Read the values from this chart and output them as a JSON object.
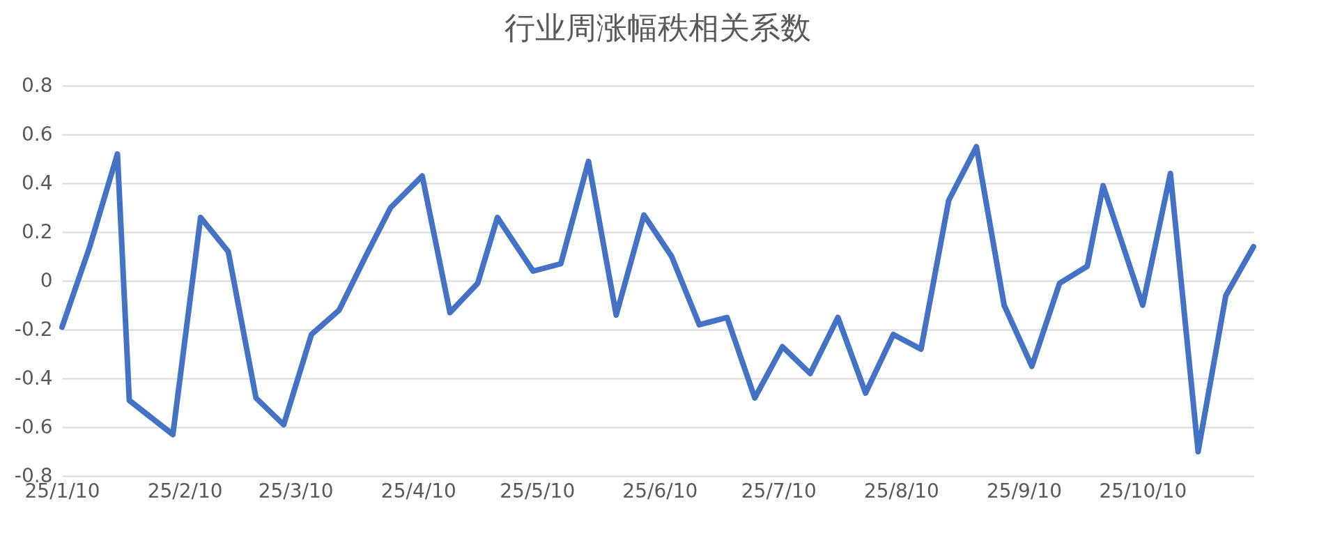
{
  "chart_data": {
    "type": "line",
    "title": "行业周涨幅秩相关系数",
    "x": [
      "--01-10",
      "--01-17",
      "--01-24",
      "--01-27",
      "--02-07",
      "--02-14",
      "--02-21",
      "--02-28",
      "--03-07",
      "--03-14",
      "--03-21",
      "--03-28",
      "--04-03",
      "--04-11",
      "--04-18",
      "--04-25",
      "--04-30",
      "--05-09",
      "--05-16",
      "--05-23",
      "--05-30",
      "--06-06",
      "--06-13",
      "--06-20",
      "--06-27",
      "--07-04",
      "--07-11",
      "--07-18",
      "--07-25",
      "--08-01",
      "--08-08",
      "--08-15",
      "--08-22",
      "--08-29",
      "--09-05",
      "--09-12",
      "--09-19",
      "--09-26",
      "--09-30",
      "--10-10",
      "--10-17",
      "--10-24",
      "--10-31",
      "--11-07"
    ],
    "series": [
      {
        "color": "#4472c4",
        "values": [
          -0.19,
          0.14,
          0.52,
          -0.49,
          -0.63,
          0.26,
          0.12,
          -0.48,
          -0.59,
          -0.22,
          -0.12,
          0.11,
          0.3,
          0.43,
          -0.13,
          -0.01,
          0.26,
          0.04,
          0.07,
          0.49,
          -0.14,
          0.27,
          0.1,
          -0.18,
          -0.15,
          -0.48,
          -0.27,
          -0.38,
          -0.15,
          -0.46,
          -0.22,
          -0.28,
          0.33,
          0.55,
          -0.1,
          -0.35,
          -0.01,
          0.06,
          0.39,
          -0.1,
          0.44,
          -0.7,
          -0.06,
          0.14
        ]
      }
    ],
    "xlim": [
      "--01-10",
      "--11-07"
    ],
    "xticks": [
      {
        "value": "--01-10",
        "label": "25/1/10"
      },
      {
        "value": "--02-10",
        "label": "25/2/10"
      },
      {
        "value": "--03-10",
        "label": "25/3/10"
      },
      {
        "value": "--04-10",
        "label": "25/4/10"
      },
      {
        "value": "--05-10",
        "label": "25/5/10"
      },
      {
        "value": "--06-10",
        "label": "25/6/10"
      },
      {
        "value": "--07-10",
        "label": "25/7/10"
      },
      {
        "value": "--08-10",
        "label": "25/8/10"
      },
      {
        "value": "--09-10",
        "label": "25/9/10"
      },
      {
        "value": "--10-10",
        "label": "25/10/10"
      }
    ],
    "ylim": [
      -0.8,
      0.8
    ],
    "yticks": [
      -0.8,
      -0.6,
      -0.4,
      -0.2,
      0,
      0.2,
      0.4,
      0.6,
      0.8
    ],
    "grid": "y",
    "marker": "none",
    "line_style": "solid"
  }
}
